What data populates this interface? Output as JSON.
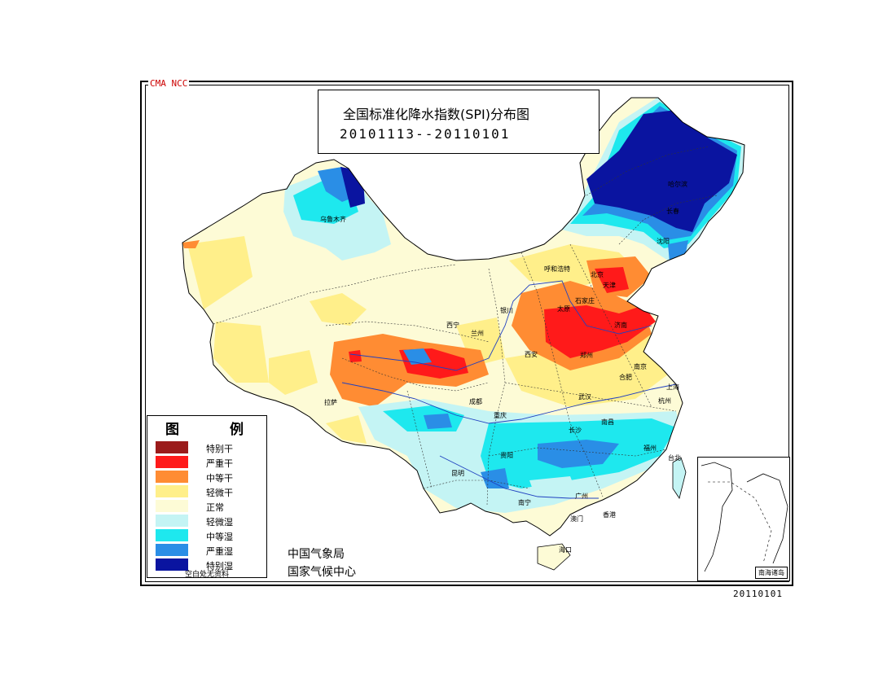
{
  "header": {
    "org_tag": "CMA NCC",
    "title": "全国标准化降水指数(SPI)分布图",
    "date_range": "20101113--20110101"
  },
  "legend": {
    "title": "图 例",
    "items": [
      {
        "label": "特别干",
        "color": "#9b1b1b"
      },
      {
        "label": "严重干",
        "color": "#ff1a1a"
      },
      {
        "label": "中等干",
        "color": "#ff8c33"
      },
      {
        "label": "轻微干",
        "color": "#ffef8a"
      },
      {
        "label": "正常",
        "color": "#fdfbd6"
      },
      {
        "label": "轻微湿",
        "color": "#c4f4f4"
      },
      {
        "label": "中等湿",
        "color": "#1ee8ee"
      },
      {
        "label": "严重湿",
        "color": "#2a8ee6"
      },
      {
        "label": "特别湿",
        "color": "#0a14a0"
      }
    ],
    "note": "空白处无资料"
  },
  "agency": {
    "line1": "中国气象局",
    "line2": "国家气候中心"
  },
  "inset": {
    "label": "南海诸岛"
  },
  "footer": {
    "issue_date": "20110101"
  },
  "cities": {
    "urumqi": "乌鲁木齐",
    "lhasa": "拉萨",
    "xining": "西宁",
    "lanzhou": "兰州",
    "yinchuan": "银川",
    "hohhot": "呼和浩特",
    "beijing": "北京",
    "tianjin": "天津",
    "taiyuan": "太原",
    "shijiazhuang": "石家庄",
    "jinan": "济南",
    "xian": "西安",
    "zhengzhou": "郑州",
    "hefei": "合肥",
    "nanjing": "南京",
    "shanghai": "上海",
    "hangzhou": "杭州",
    "wuhan": "武汉",
    "chengdu": "成都",
    "chongqing": "重庆",
    "changsha": "长沙",
    "nanchang": "南昌",
    "guiyang": "贵阳",
    "fuzhou": "福州",
    "kunming": "昆明",
    "nanning": "南宁",
    "guangzhou": "广州",
    "hongkong": "香港",
    "macau": "澳门",
    "haikou": "海口",
    "taibei": "台北",
    "harbin": "哈尔滨",
    "changchun": "长春",
    "shenyang": "沈阳"
  }
}
